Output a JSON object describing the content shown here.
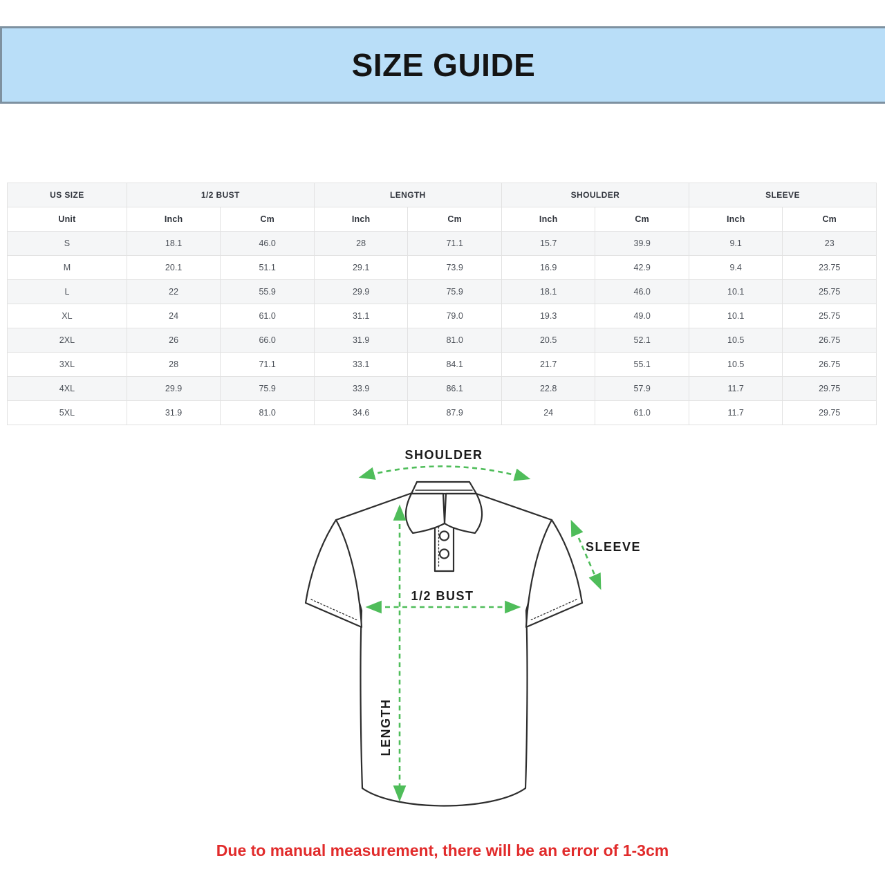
{
  "banner": {
    "title": "SIZE GUIDE"
  },
  "colors": {
    "banner_bg": "#b9def8",
    "banner_border": "#7e91a0",
    "title_text": "#141414",
    "arrow_green": "#4fbd5a",
    "note_red": "#e12b2b",
    "row_alt": "#f5f6f7",
    "table_border": "#e2e2e2",
    "header_text": "#30343c",
    "cell_text": "#4b5058",
    "shirt_line": "#2e2e2e"
  },
  "table": {
    "groups": [
      {
        "label": "US SIZE",
        "span": 1
      },
      {
        "label": "1/2 BUST",
        "span": 2
      },
      {
        "label": "LENGTH",
        "span": 2
      },
      {
        "label": "SHOULDER",
        "span": 2
      },
      {
        "label": "SLEEVE",
        "span": 2
      }
    ],
    "unit_row": [
      "Unit",
      "Inch",
      "Cm",
      "Inch",
      "Cm",
      "Inch",
      "Cm",
      "Inch",
      "Cm"
    ],
    "rows": [
      [
        "S",
        "18.1",
        "46.0",
        "28",
        "71.1",
        "15.7",
        "39.9",
        "9.1",
        "23"
      ],
      [
        "M",
        "20.1",
        "51.1",
        "29.1",
        "73.9",
        "16.9",
        "42.9",
        "9.4",
        "23.75"
      ],
      [
        "L",
        "22",
        "55.9",
        "29.9",
        "75.9",
        "18.1",
        "46.0",
        "10.1",
        "25.75"
      ],
      [
        "XL",
        "24",
        "61.0",
        "31.1",
        "79.0",
        "19.3",
        "49.0",
        "10.1",
        "25.75"
      ],
      [
        "2XL",
        "26",
        "66.0",
        "31.9",
        "81.0",
        "20.5",
        "52.1",
        "10.5",
        "26.75"
      ],
      [
        "3XL",
        "28",
        "71.1",
        "33.1",
        "84.1",
        "21.7",
        "55.1",
        "10.5",
        "26.75"
      ],
      [
        "4XL",
        "29.9",
        "75.9",
        "33.9",
        "86.1",
        "22.8",
        "57.9",
        "11.7",
        "29.75"
      ],
      [
        "5XL",
        "31.9",
        "81.0",
        "34.6",
        "87.9",
        "24",
        "61.0",
        "11.7",
        "29.75"
      ]
    ]
  },
  "diagram": {
    "labels": {
      "shoulder": "SHOULDER",
      "sleeve": "SLEEVE",
      "bust": "1/2 BUST",
      "length": "LENGTH"
    }
  },
  "note": {
    "text": "Due to manual measurement, there will be an error of 1-3cm"
  }
}
